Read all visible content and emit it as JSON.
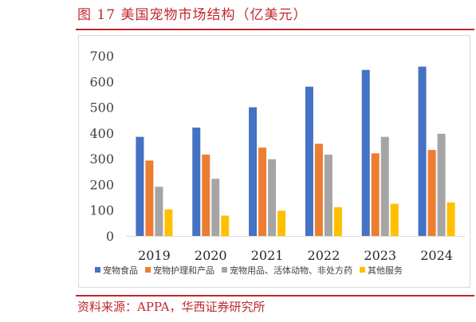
{
  "title": "图 17 美国宠物市场结构（亿美元）",
  "source": "资料来源：APPA，华西证券研究所",
  "chart_data": {
    "type": "bar",
    "title": "",
    "xlabel": "",
    "ylabel": "",
    "ylim": [
      0,
      700
    ],
    "y_ticks": [
      0,
      100,
      200,
      300,
      400,
      500,
      600,
      700
    ],
    "grid": false,
    "legend_position": "bottom",
    "categories": [
      "2019",
      "2020",
      "2021",
      "2022",
      "2023",
      "2024"
    ],
    "series": [
      {
        "name": "宠物食品",
        "color": "#4472c4",
        "values": [
          385,
          421,
          500,
          580,
          645,
          658
        ]
      },
      {
        "name": "宠物护理和产品",
        "color": "#ed7d31",
        "values": [
          293,
          316,
          343,
          358,
          321,
          334
        ]
      },
      {
        "name": "宠物用品、活体动物、非处方药",
        "color": "#a5a5a5",
        "values": [
          191,
          222,
          298,
          316,
          385,
          397
        ]
      },
      {
        "name": "其他服务",
        "color": "#ffc000",
        "values": [
          103,
          79,
          98,
          112,
          125,
          130
        ]
      }
    ]
  }
}
